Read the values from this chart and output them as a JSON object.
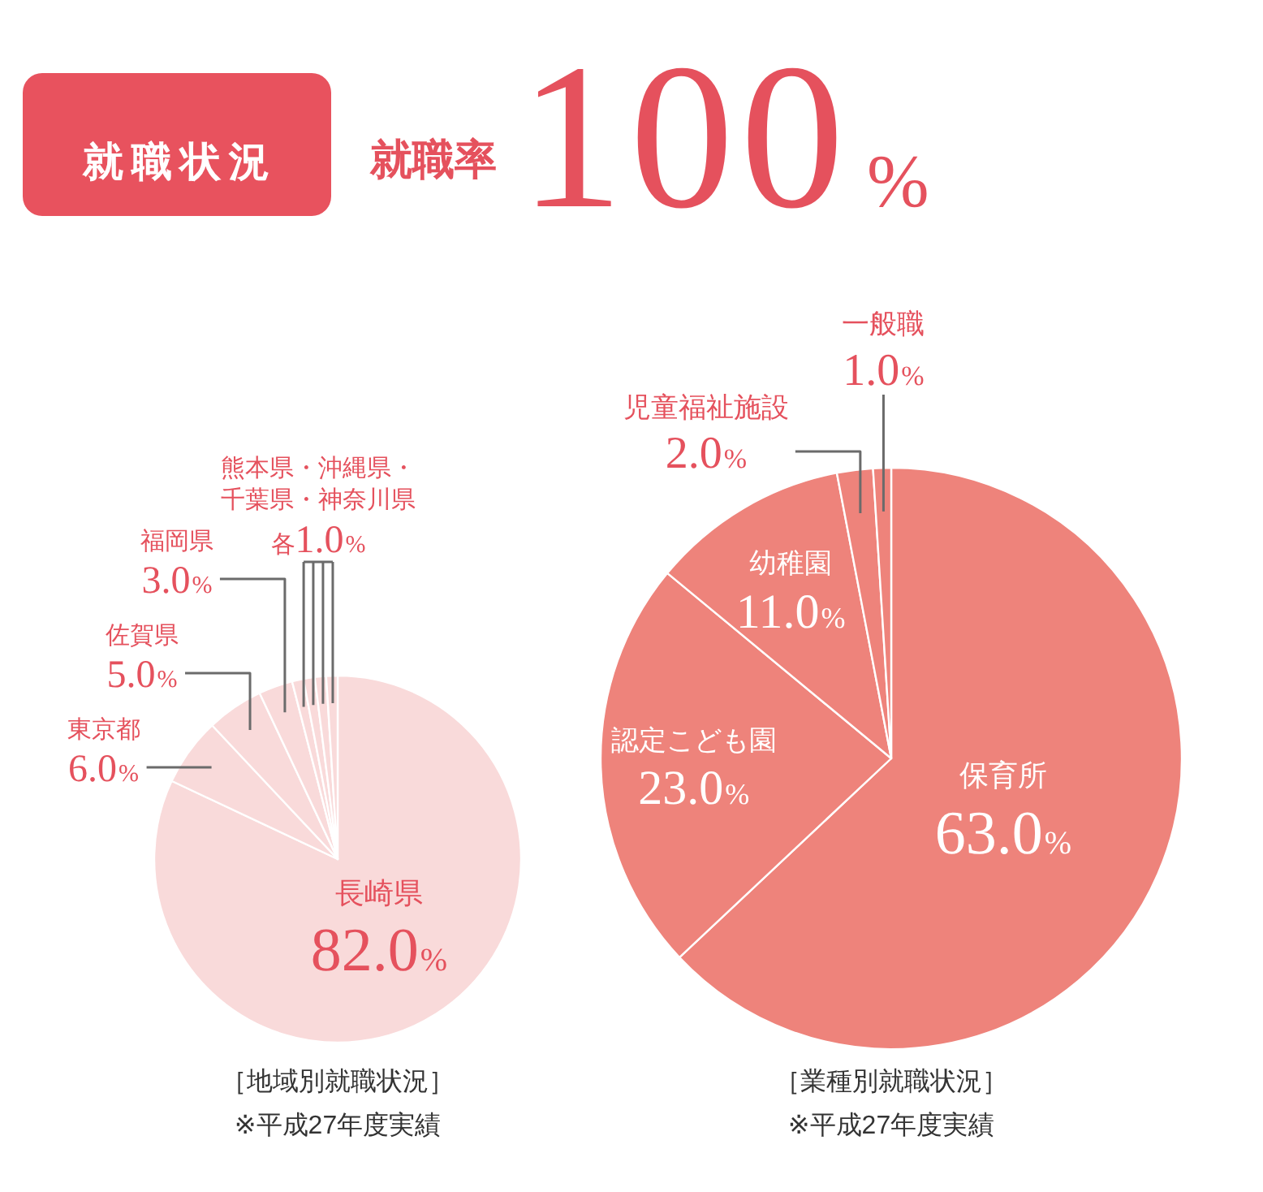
{
  "chart_data": [
    {
      "type": "other",
      "title": "就職状況",
      "annotations": [
        "就職率",
        "100%"
      ]
    },
    {
      "type": "pie",
      "title": "［地域別就職状況］",
      "annotations": [
        "※平成27年度実績"
      ],
      "categories": [
        "長崎県",
        "東京都",
        "佐賀県",
        "福岡県",
        "熊本県・沖縄県・千葉県・神奈川県",
        null,
        null,
        null
      ],
      "values": [
        82,
        6,
        5,
        3,
        1,
        1,
        1,
        1
      ],
      "colors": [
        "#f9dada",
        "#f9dada",
        "#f9dada",
        "#f9dada",
        "#f9dada",
        "#f9dada",
        "#f9dada",
        "#f9dada"
      ],
      "value_labels": [
        "82.0%",
        "6.0%",
        "5.0%",
        "3.0%",
        "各1.0%",
        null,
        null,
        null
      ]
    },
    {
      "type": "pie",
      "title": "［業種別就職状況］",
      "annotations": [
        "※平成27年度実績"
      ],
      "categories": [
        "保育所",
        "認定こども園",
        "幼稚園",
        "児童福祉施設",
        "一般職"
      ],
      "values": [
        63,
        23,
        11,
        2,
        1
      ],
      "colors": [
        "#ee837b",
        "#ee837b",
        "#ee837b",
        "#ee837b",
        "#ee837b"
      ],
      "value_labels": [
        "63.0%",
        "23.0%",
        "11.0%",
        "2.0%",
        "1.0%"
      ]
    }
  ]
}
